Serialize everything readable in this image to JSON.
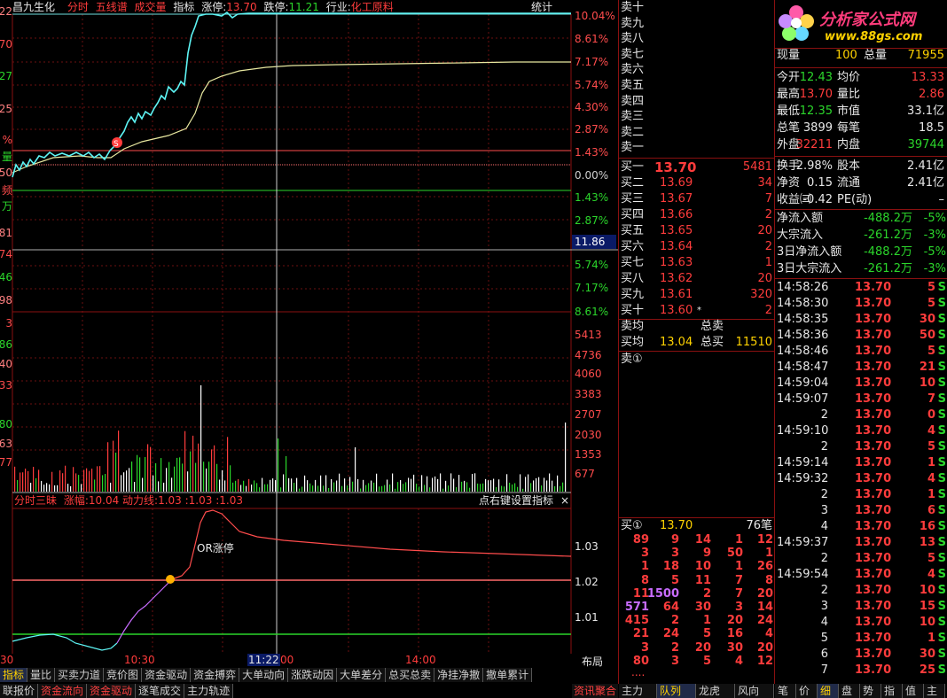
{
  "chart": {
    "stock_name": "昌九生化",
    "tabs": [
      "分时",
      "五线谱",
      "成交量",
      "指标"
    ],
    "limit_up_label": "涨停:",
    "limit_up": "13.70",
    "limit_down_label": "跌停:",
    "limit_down": "11.21",
    "industry_label": "行业:",
    "industry": "化工原料",
    "stats_label": "统计",
    "right_axis": [
      "10.04%",
      "8.61%",
      "7.17%",
      "5.74%",
      "4.30%",
      "2.87%",
      "1.43%",
      "0.00%",
      "1.43%",
      "2.87%",
      "5.74%",
      "7.17%",
      "8.61%",
      "5413",
      "4736",
      "4060",
      "3383",
      "2707",
      "2030",
      "1353",
      "677"
    ],
    "left_axis": [
      "22",
      "70",
      "27",
      "25",
      "%",
      "量",
      "50",
      "频",
      "万",
      "81",
      "74",
      "46",
      "98",
      "3",
      "86",
      "40",
      "33",
      "80",
      "63",
      "77"
    ],
    "price_tag": "11.86",
    "indicator": {
      "title": "分时三昧",
      "lines": "涨幅:10.04  动力线:1.03  :1.03  :1.03",
      "hint": "点右键设置指标",
      "close": "×",
      "axis": [
        "1.03",
        "1.02",
        "1.01"
      ],
      "annotation": "OR涨停"
    },
    "time_axis": [
      "30",
      "10:30",
      "11:22",
      "00",
      "14:00"
    ],
    "layout_label": "布局",
    "bottom_tabs_1": [
      "指标",
      "量比",
      "买卖力道",
      "竞价图",
      "资金驱动",
      "资金搏弈",
      "大单动向",
      "涨跌动因",
      "大单差分",
      "总买总卖",
      "净挂净撤",
      "撤单累计"
    ],
    "bottom_tabs_2": [
      "联报价",
      "资金流向",
      "资金驱动",
      "逐笔成交",
      "主力轨迹"
    ]
  },
  "order_book": {
    "sells": [
      "卖十",
      "卖九",
      "卖八",
      "卖七",
      "卖六",
      "卖五",
      "卖四",
      "卖三",
      "卖二",
      "卖一"
    ],
    "buys": [
      {
        "label": "买一",
        "price": "13.70",
        "vol": "5481"
      },
      {
        "label": "买二",
        "price": "13.69",
        "vol": "34"
      },
      {
        "label": "买三",
        "price": "13.67",
        "vol": "7"
      },
      {
        "label": "买四",
        "price": "13.66",
        "vol": "2"
      },
      {
        "label": "买五",
        "price": "13.65",
        "vol": "20"
      },
      {
        "label": "买六",
        "price": "13.64",
        "vol": "2"
      },
      {
        "label": "买七",
        "price": "13.63",
        "vol": "1"
      },
      {
        "label": "买八",
        "price": "13.62",
        "vol": "20"
      },
      {
        "label": "买九",
        "price": "13.61",
        "vol": "320"
      },
      {
        "label": "买十",
        "price": "13.60",
        "mark": "*",
        "vol": "2"
      }
    ],
    "sell_avg_label": "卖均",
    "total_sell_label": "总卖",
    "buy_avg_label": "买均",
    "buy_avg": "13.04",
    "total_buy_label": "总买",
    "total_buy": "11510",
    "sell1_queue": "卖①",
    "buy1_queue": {
      "label": "买①",
      "price": "13.70",
      "count": "76笔"
    },
    "queue": [
      [
        "89",
        "9",
        "14",
        "1",
        "12"
      ],
      [
        "3",
        "3",
        "9",
        "50",
        "1"
      ],
      [
        "1",
        "18",
        "10",
        "1",
        "26"
      ],
      [
        "8",
        "5",
        "11",
        "7",
        "8"
      ],
      [
        "11",
        "1500",
        "2",
        "7",
        "20"
      ],
      [
        "571",
        "64",
        "30",
        "3",
        "14"
      ],
      [
        "415",
        "2",
        "1",
        "20",
        "24"
      ],
      [
        "21",
        "24",
        "5",
        "16",
        "4"
      ],
      [
        "3",
        "2",
        "20",
        "30",
        "20"
      ],
      [
        "80",
        "3",
        "5",
        "4",
        "12"
      ]
    ],
    "more": "....",
    "bottom_tabs": [
      "主力",
      "队列",
      "龙虎",
      "风向"
    ]
  },
  "quote": {
    "logo_text": "分析家公式网",
    "logo_url": "www.88gs.com",
    "now_vol_label": "现量",
    "now_vol": "100",
    "total_vol_label": "总量",
    "total_vol": "71955",
    "rows": [
      [
        "今开",
        "12.43",
        "均价",
        "13.33"
      ],
      [
        "最高",
        "13.70",
        "量比",
        "2.86"
      ],
      [
        "最低",
        "12.35",
        "市值",
        "33.1亿"
      ],
      [
        "总笔",
        "3899",
        "每笔",
        "18.5"
      ],
      [
        "外盘",
        "32211",
        "内盘",
        "39744"
      ],
      [
        "换手",
        "2.98%",
        "股本",
        "2.41亿"
      ],
      [
        "净资",
        "0.15",
        "流通",
        "2.41亿"
      ],
      [
        "收益㈢",
        "-0.42",
        "PE(动)",
        "–"
      ]
    ],
    "flows": [
      [
        "净流入额",
        "-488.2万",
        "-5%"
      ],
      [
        "大宗流入",
        "-261.2万",
        "-3%"
      ],
      [
        "3日净流入额",
        "-488.2万",
        "-5%"
      ],
      [
        "3日大宗流入",
        "-261.2万",
        "-3%"
      ]
    ],
    "ticks": [
      [
        "14:58:26",
        "13.70",
        "5",
        "S"
      ],
      [
        "14:58:30",
        "13.70",
        "5",
        "S"
      ],
      [
        "14:58:35",
        "13.70",
        "30",
        "S"
      ],
      [
        "14:58:36",
        "13.70",
        "50",
        "S"
      ],
      [
        "14:58:46",
        "13.70",
        "5",
        "S"
      ],
      [
        "14:58:47",
        "13.70",
        "21",
        "S"
      ],
      [
        "14:59:04",
        "13.70",
        "10",
        "S"
      ],
      [
        "14:59:07",
        "13.70",
        "7",
        "S"
      ],
      [
        "2",
        "13.70",
        "0",
        "S"
      ],
      [
        "14:59:10",
        "13.70",
        "4",
        "S"
      ],
      [
        "2",
        "13.70",
        "5",
        "S"
      ],
      [
        "14:59:14",
        "13.70",
        "1",
        "S"
      ],
      [
        "14:59:32",
        "13.70",
        "4",
        "S"
      ],
      [
        "2",
        "13.70",
        "1",
        "S"
      ],
      [
        "3",
        "13.70",
        "6",
        "S"
      ],
      [
        "4",
        "13.70",
        "16",
        "S"
      ],
      [
        "14:59:37",
        "13.70",
        "13",
        "S"
      ],
      [
        "2",
        "13.70",
        "5",
        "S"
      ],
      [
        "14:59:54",
        "13.70",
        "4",
        "S"
      ],
      [
        "2",
        "13.70",
        "10",
        "S"
      ],
      [
        "3",
        "13.70",
        "15",
        "S"
      ],
      [
        "4",
        "13.70",
        "10",
        "S"
      ],
      [
        "5",
        "13.70",
        "1",
        "S"
      ],
      [
        "6",
        "13.70",
        "30",
        "S"
      ],
      [
        "7",
        "13.70",
        "25",
        "S"
      ]
    ],
    "bottom_tabs": [
      "笔",
      "价",
      "细",
      "盘",
      "势",
      "指",
      "值",
      "主"
    ],
    "news_tab": "资讯聚合"
  }
}
